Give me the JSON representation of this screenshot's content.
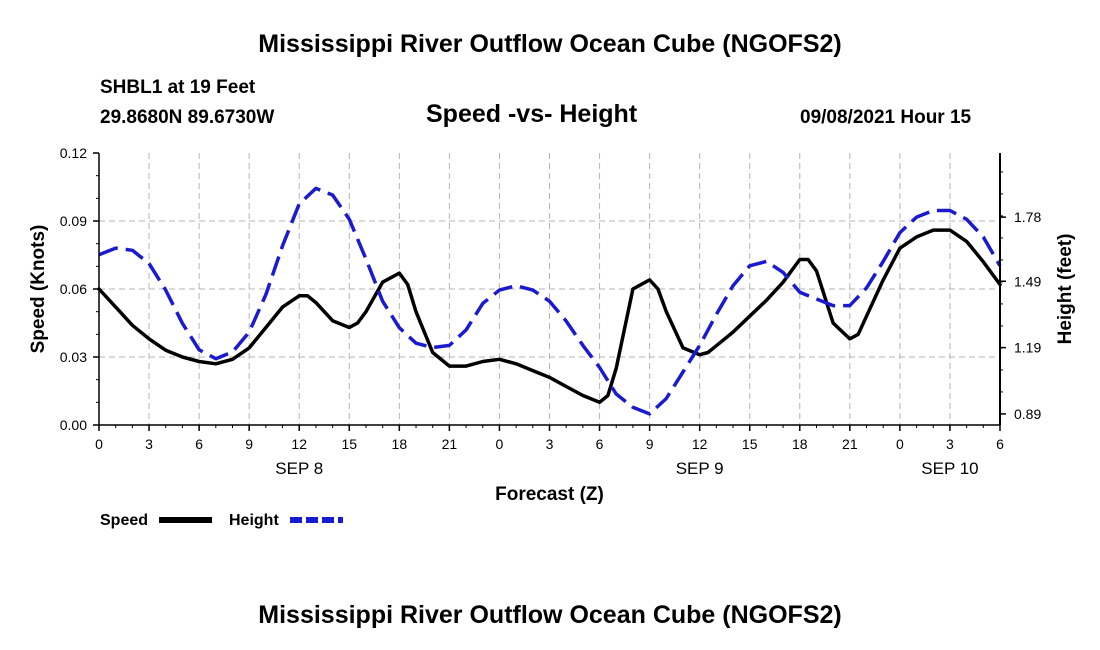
{
  "page": {
    "title_top": "Mississippi River Outflow Ocean Cube (NGOFS2)",
    "title_bottom": "Mississippi River Outflow Ocean Cube (NGOFS2)",
    "station": "SHBL1 at 19 Feet",
    "coords": "29.8680N  89.6730W",
    "plot_title": "Speed -vs- Height",
    "datetime": "09/08/2021 Hour 15"
  },
  "chart_data": {
    "type": "line",
    "title": "Speed -vs- Height",
    "xlabel": "Forecast (Z)",
    "ylabel": "Speed (Knots)",
    "y2label": "Height (feet)",
    "x_range_hours": [
      0,
      54
    ],
    "x_ticks": [
      {
        "hour": 0,
        "label": "0"
      },
      {
        "hour": 3,
        "label": "3"
      },
      {
        "hour": 6,
        "label": "6"
      },
      {
        "hour": 9,
        "label": "9"
      },
      {
        "hour": 12,
        "label": "12"
      },
      {
        "hour": 15,
        "label": "15"
      },
      {
        "hour": 18,
        "label": "18"
      },
      {
        "hour": 21,
        "label": "21"
      },
      {
        "hour": 24,
        "label": "0"
      },
      {
        "hour": 27,
        "label": "3"
      },
      {
        "hour": 30,
        "label": "6"
      },
      {
        "hour": 33,
        "label": "9"
      },
      {
        "hour": 36,
        "label": "12"
      },
      {
        "hour": 39,
        "label": "15"
      },
      {
        "hour": 42,
        "label": "18"
      },
      {
        "hour": 45,
        "label": "21"
      },
      {
        "hour": 48,
        "label": "0"
      },
      {
        "hour": 51,
        "label": "3"
      },
      {
        "hour": 54,
        "label": "6"
      }
    ],
    "date_labels": [
      {
        "hour": 12,
        "label": "SEP 8"
      },
      {
        "hour": 36,
        "label": "SEP 9"
      },
      {
        "hour": 51,
        "label": "SEP 10"
      }
    ],
    "ylim": [
      0,
      0.12
    ],
    "y_ticks": [
      {
        "value": 0.0,
        "label": "0.00"
      },
      {
        "value": 0.03,
        "label": "0.03"
      },
      {
        "value": 0.06,
        "label": "0.06"
      },
      {
        "value": 0.09,
        "label": "0.09"
      },
      {
        "value": 0.12,
        "label": "0.12"
      }
    ],
    "y2lim": [
      0.84,
      2.07
    ],
    "y2_ticks": [
      {
        "value": 0.89,
        "label": "0.89"
      },
      {
        "value": 1.19,
        "label": "1.19"
      },
      {
        "value": 1.49,
        "label": "1.49"
      },
      {
        "value": 1.78,
        "label": "1.78"
      }
    ],
    "grid": true,
    "series": [
      {
        "name": "Speed",
        "axis": "left",
        "color": "#000000",
        "dash": "solid",
        "x": [
          0,
          1,
          2,
          3,
          4,
          5,
          6,
          7,
          8,
          9,
          10,
          11,
          12,
          12.5,
          13,
          14,
          15,
          15.5,
          16,
          17,
          18,
          18.5,
          19,
          20,
          21,
          22,
          23,
          24,
          25,
          26,
          27,
          28,
          29,
          30,
          30.5,
          31,
          32,
          33,
          33.5,
          34,
          35,
          36,
          36.5,
          37,
          38,
          39,
          40,
          41,
          42,
          42.5,
          43,
          44,
          45,
          45.5,
          46,
          47,
          48,
          49,
          50,
          51,
          52,
          53,
          54
        ],
        "values": [
          0.06,
          0.052,
          0.044,
          0.038,
          0.033,
          0.03,
          0.028,
          0.027,
          0.029,
          0.034,
          0.043,
          0.052,
          0.057,
          0.057,
          0.054,
          0.046,
          0.043,
          0.045,
          0.05,
          0.063,
          0.067,
          0.062,
          0.05,
          0.032,
          0.026,
          0.026,
          0.028,
          0.029,
          0.027,
          0.024,
          0.021,
          0.017,
          0.013,
          0.01,
          0.013,
          0.025,
          0.06,
          0.064,
          0.06,
          0.05,
          0.034,
          0.031,
          0.032,
          0.035,
          0.041,
          0.048,
          0.055,
          0.063,
          0.073,
          0.073,
          0.068,
          0.045,
          0.038,
          0.04,
          0.048,
          0.064,
          0.078,
          0.083,
          0.086,
          0.086,
          0.081,
          0.072,
          0.062
        ]
      },
      {
        "name": "Height",
        "axis": "right",
        "color": "#1a1ad0",
        "dash": "dashed",
        "x": [
          0,
          1,
          2,
          3,
          4,
          5,
          6,
          7,
          8,
          9,
          10,
          11,
          12,
          13,
          14,
          15,
          16,
          17,
          18,
          19,
          20,
          21,
          22,
          23,
          24,
          25,
          26,
          27,
          28,
          29,
          30,
          31,
          32,
          33,
          34,
          35,
          36,
          37,
          38,
          39,
          40,
          41,
          42,
          43,
          44,
          45,
          46,
          47,
          48,
          49,
          50,
          51,
          52,
          53,
          54
        ],
        "values": [
          1.61,
          1.64,
          1.63,
          1.57,
          1.45,
          1.3,
          1.18,
          1.14,
          1.17,
          1.26,
          1.43,
          1.65,
          1.84,
          1.91,
          1.88,
          1.77,
          1.59,
          1.4,
          1.28,
          1.21,
          1.19,
          1.2,
          1.27,
          1.39,
          1.45,
          1.47,
          1.45,
          1.4,
          1.31,
          1.2,
          1.1,
          0.98,
          0.92,
          0.89,
          0.96,
          1.08,
          1.2,
          1.34,
          1.47,
          1.56,
          1.58,
          1.53,
          1.44,
          1.41,
          1.38,
          1.38,
          1.46,
          1.58,
          1.71,
          1.78,
          1.81,
          1.81,
          1.77,
          1.69,
          1.56
        ]
      }
    ],
    "legend": [
      {
        "name": "Speed",
        "color": "#000000",
        "dash": "solid"
      },
      {
        "name": "Height",
        "color": "#1a1ad0",
        "dash": "dashed"
      }
    ]
  }
}
